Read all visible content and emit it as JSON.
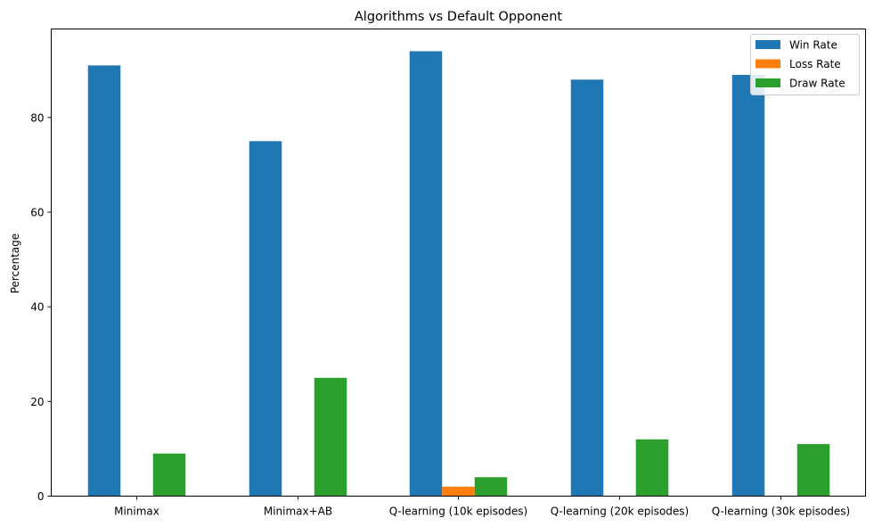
{
  "chart_data": {
    "type": "bar",
    "title": "Algorithms vs Default Opponent",
    "xlabel": "",
    "ylabel": "Percentage",
    "categories": [
      "Minimax",
      "Minimax+AB",
      "Q-learning (10k episodes)",
      "Q-learning (20k episodes)",
      "Q-learning (30k episodes)"
    ],
    "series": [
      {
        "name": "Win Rate",
        "color": "#1f77b4",
        "values": [
          91,
          75,
          94,
          88,
          89
        ]
      },
      {
        "name": "Loss Rate",
        "color": "#ff7f0e",
        "values": [
          0,
          0,
          2,
          0,
          0
        ]
      },
      {
        "name": "Draw Rate",
        "color": "#2ca02c",
        "values": [
          9,
          25,
          4,
          12,
          11
        ]
      }
    ],
    "yticks": [
      0,
      20,
      40,
      60,
      80
    ],
    "ylim": [
      0,
      98.7
    ],
    "grid": false,
    "legend_position": "top-right"
  }
}
